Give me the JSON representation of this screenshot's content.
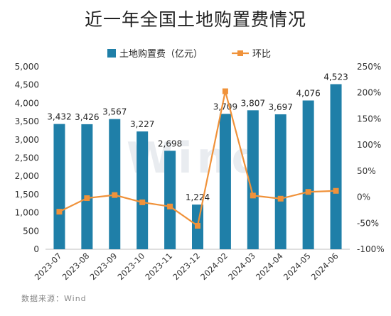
{
  "title": "近一年全国土地购置费情况",
  "source": "数据来源：Wind",
  "watermark": "Wind",
  "chart_data": {
    "type": "bar",
    "categories": [
      "2023-07",
      "2023-08",
      "2023-09",
      "2023-10",
      "2023-11",
      "2023-12",
      "2024-02",
      "2024-03",
      "2024-04",
      "2024-05",
      "2024-06"
    ],
    "series": [
      {
        "name": "土地购置费（亿元）",
        "type": "bar",
        "axis": "left",
        "color": "#1f7fa8",
        "values": [
          3432,
          3426,
          3567,
          3227,
          2698,
          1224,
          3709,
          3807,
          3697,
          4076,
          4523
        ],
        "labels": [
          "3,432",
          "3,426",
          "3,567",
          "3,227",
          "2,698",
          "1,224",
          "3,709",
          "3,807",
          "3,697",
          "4,076",
          "4,523"
        ]
      },
      {
        "name": "环比",
        "type": "line",
        "axis": "right",
        "color": "#f0923a",
        "values": [
          -28,
          -2,
          4,
          -10,
          -18,
          -55,
          203,
          3,
          -3,
          10,
          12
        ]
      }
    ],
    "yleft": {
      "min": 0,
      "max": 5000,
      "ticks": [
        "0",
        "500",
        "1,000",
        "1,500",
        "2,000",
        "2,500",
        "3,000",
        "3,500",
        "4,000",
        "4,500",
        "5,000"
      ]
    },
    "yright": {
      "min": -100,
      "max": 250,
      "ticks": [
        "-100%",
        "-50%",
        "0%",
        "50%",
        "100%",
        "150%",
        "200%",
        "250%"
      ]
    },
    "legend": "top"
  }
}
